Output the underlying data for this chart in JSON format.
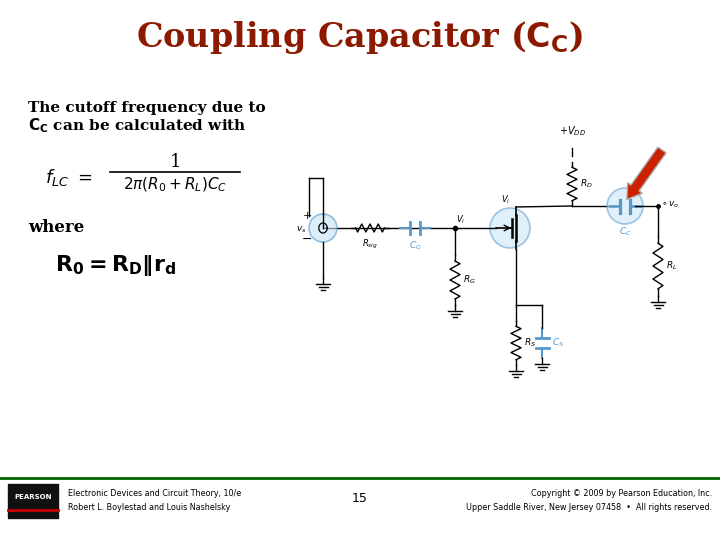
{
  "title_color": "#8B1A00",
  "bg_color": "#FFFFFF",
  "text_color": "#000000",
  "desc_line1": "The cutoff frequency due to",
  "desc_line2": "$\\mathbf{C_C}$ can be calculated with",
  "where_text": "where",
  "footer_line_color": "#006600",
  "footer_left1": "Electronic Devices and Circuit Theory, 10/e",
  "footer_left2": "Robert L. Boylestad and Louis Nashelsky",
  "footer_center": "15",
  "footer_right1": "Copyright © 2009 by Pearson Education, Inc.",
  "footer_right2": "Upper Saddle River, New Jersey 07458  •  All rights reserved.",
  "cap_color": "#5599CC",
  "circuit_color": "#000000",
  "arrow_color": "#CC2200",
  "arrow_gray": "#AAAAAA",
  "circle_fill": "#C8E4F4",
  "circle_edge": "#5599CC"
}
